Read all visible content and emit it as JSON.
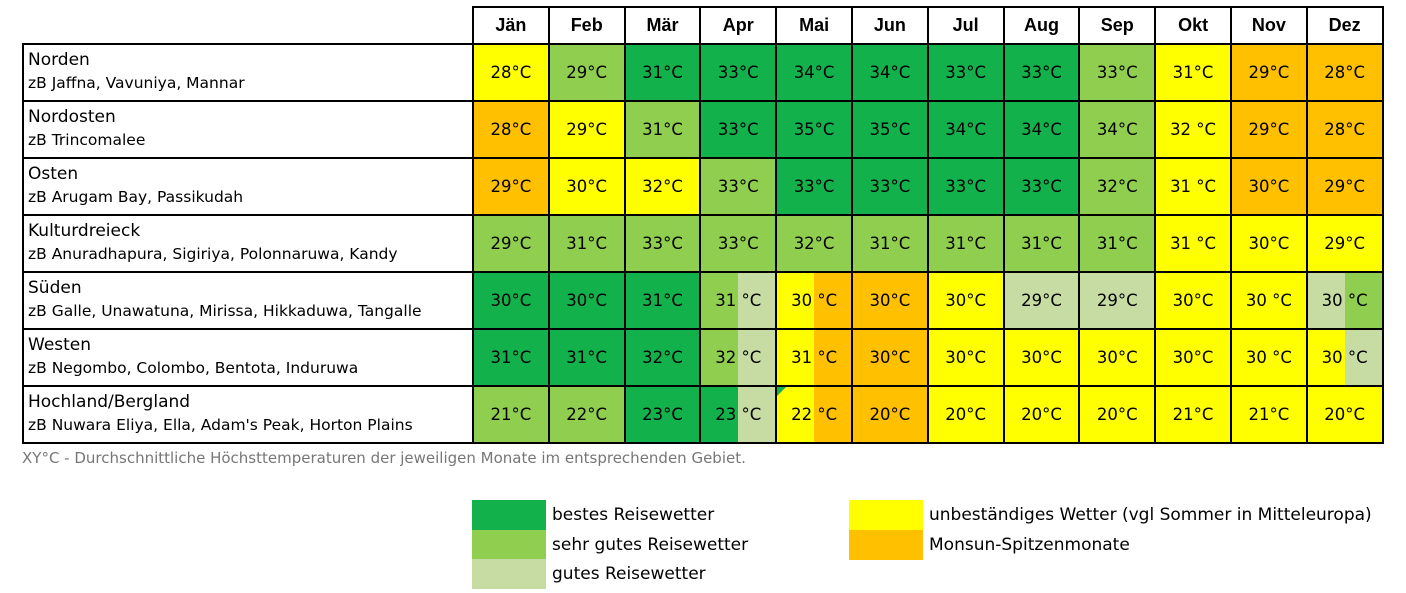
{
  "months": [
    "Jän",
    "Feb",
    "Mär",
    "Apr",
    "Mai",
    "Jun",
    "Jul",
    "Aug",
    "Sep",
    "Okt",
    "Nov",
    "Dez"
  ],
  "colors": {
    "g1": "#13b14b",
    "g2": "#8fce4f",
    "g3": "#c7dca2",
    "y": "#ffff00",
    "o": "#ffc000"
  },
  "rows": [
    {
      "name": "Norden",
      "sub": "zB Jaffna, Vavuniya, Mannar",
      "cells": [
        {
          "t": "28°C",
          "c": "y"
        },
        {
          "t": "29°C",
          "c": "g2"
        },
        {
          "t": "31°C",
          "c": "g1"
        },
        {
          "t": "33°C",
          "c": "g1"
        },
        {
          "t": "34°C",
          "c": "g1"
        },
        {
          "t": "34°C",
          "c": "g1"
        },
        {
          "t": "33°C",
          "c": "g1"
        },
        {
          "t": "33°C",
          "c": "g1"
        },
        {
          "t": "33°C",
          "c": "g2"
        },
        {
          "t": "31°C",
          "c": "y"
        },
        {
          "t": "29°C",
          "c": "o"
        },
        {
          "t": "28°C",
          "c": "o"
        }
      ]
    },
    {
      "name": "Nordosten",
      "sub": "zB Trincomalee",
      "cells": [
        {
          "t": "28°C",
          "c": "o"
        },
        {
          "t": "29°C",
          "c": "y"
        },
        {
          "t": "31°C",
          "c": "g2"
        },
        {
          "t": "33°C",
          "c": "g1"
        },
        {
          "t": "35°C",
          "c": "g1"
        },
        {
          "t": "35°C",
          "c": "g1"
        },
        {
          "t": "34°C",
          "c": "g1"
        },
        {
          "t": "34°C",
          "c": "g1"
        },
        {
          "t": "34°C",
          "c": "g2"
        },
        {
          "t": "32 °C",
          "c": "y"
        },
        {
          "t": "29°C",
          "c": "o"
        },
        {
          "t": "28°C",
          "c": "o"
        }
      ]
    },
    {
      "name": "Osten",
      "sub": "zB Arugam Bay, Passikudah",
      "cells": [
        {
          "t": "29°C",
          "c": "o"
        },
        {
          "t": "30°C",
          "c": "y"
        },
        {
          "t": "32°C",
          "c": "y"
        },
        {
          "t": "33°C",
          "c": "g2"
        },
        {
          "t": "33°C",
          "c": "g1"
        },
        {
          "t": "33°C",
          "c": "g1"
        },
        {
          "t": "33°C",
          "c": "g1"
        },
        {
          "t": "33°C",
          "c": "g1"
        },
        {
          "t": "32°C",
          "c": "g2"
        },
        {
          "t": "31 °C",
          "c": "y"
        },
        {
          "t": "30°C",
          "c": "o"
        },
        {
          "t": "29°C",
          "c": "o"
        }
      ]
    },
    {
      "name": "Kulturdreieck",
      "sub": "zB Anuradhapura, Sigiriya, Polonnaruwa, Kandy",
      "cells": [
        {
          "t": "29°C",
          "c": "g2"
        },
        {
          "t": "31°C",
          "c": "g2"
        },
        {
          "t": "33°C",
          "c": "g2"
        },
        {
          "t": "33°C",
          "c": "g2"
        },
        {
          "t": "32°C",
          "c": "g2"
        },
        {
          "t": "31°C",
          "c": "g2"
        },
        {
          "t": "31°C",
          "c": "g2"
        },
        {
          "t": "31°C",
          "c": "g2"
        },
        {
          "t": "31°C",
          "c": "g2"
        },
        {
          "t": "31 °C",
          "c": "y"
        },
        {
          "t": "30°C",
          "c": "y"
        },
        {
          "t": "29°C",
          "c": "y"
        }
      ]
    },
    {
      "name": "Süden",
      "sub": "zB Galle, Unawatuna, Mirissa, Hikkaduwa, Tangalle",
      "cells": [
        {
          "t": "30°C",
          "c": "g1"
        },
        {
          "t": "30°C",
          "c": "g1"
        },
        {
          "t": "31°C",
          "c": "g1"
        },
        {
          "t": "31 °C",
          "c": "g2",
          "c2": "g3"
        },
        {
          "t": "30 °C",
          "c": "y",
          "c2": "o"
        },
        {
          "t": "30°C",
          "c": "o"
        },
        {
          "t": "30°C",
          "c": "y"
        },
        {
          "t": "29°C",
          "c": "g3"
        },
        {
          "t": "29°C",
          "c": "g3"
        },
        {
          "t": "30°C",
          "c": "y"
        },
        {
          "t": "30 °C",
          "c": "y"
        },
        {
          "t": "30 °C",
          "c": "g3",
          "c2": "g2"
        }
      ]
    },
    {
      "name": "Westen",
      "sub": "zB Negombo, Colombo, Bentota, Induruwa",
      "cells": [
        {
          "t": "31°C",
          "c": "g1"
        },
        {
          "t": "31°C",
          "c": "g1"
        },
        {
          "t": "32°C",
          "c": "g1"
        },
        {
          "t": "32 °C",
          "c": "g2",
          "c2": "g3"
        },
        {
          "t": "31 °C",
          "c": "y",
          "c2": "o"
        },
        {
          "t": "30°C",
          "c": "o"
        },
        {
          "t": "30°C",
          "c": "y"
        },
        {
          "t": "30°C",
          "c": "y"
        },
        {
          "t": "30°C",
          "c": "y"
        },
        {
          "t": "30°C",
          "c": "y"
        },
        {
          "t": "30 °C",
          "c": "y"
        },
        {
          "t": "30 °C",
          "c": "y",
          "c2": "g3"
        }
      ]
    },
    {
      "name": "Hochland/Bergland",
      "sub": "zB Nuwara Eliya, Ella, Adam's Peak, Horton Plains",
      "cells": [
        {
          "t": "21°C",
          "c": "g2"
        },
        {
          "t": "22°C",
          "c": "g2"
        },
        {
          "t": "23°C",
          "c": "g1"
        },
        {
          "t": "23 °C",
          "c": "g1",
          "c2": "g3",
          "notch": true
        },
        {
          "t": "22 °C",
          "c": "y",
          "c2": "o",
          "notch": true
        },
        {
          "t": "20°C",
          "c": "o"
        },
        {
          "t": "20°C",
          "c": "y"
        },
        {
          "t": "20°C",
          "c": "y"
        },
        {
          "t": "20°C",
          "c": "y"
        },
        {
          "t": "21°C",
          "c": "y"
        },
        {
          "t": "21°C",
          "c": "y"
        },
        {
          "t": "20°C",
          "c": "y"
        }
      ]
    }
  ],
  "footnote": "XY°C - Durchschnittliche Höchsttemperaturen der jeweiligen Monate im entsprechenden Gebiet.",
  "legend": [
    {
      "label": "bestes Reisewetter",
      "c": "g1"
    },
    {
      "label": "sehr gutes Reisewetter",
      "c": "g2"
    },
    {
      "label": "gutes Reisewetter",
      "c": "g3"
    },
    {
      "label": "unbeständiges Wetter (vgl Sommer in Mitteleuropa)",
      "c": "y"
    },
    {
      "label": "Monsun-Spitzenmonate",
      "c": "o"
    }
  ]
}
